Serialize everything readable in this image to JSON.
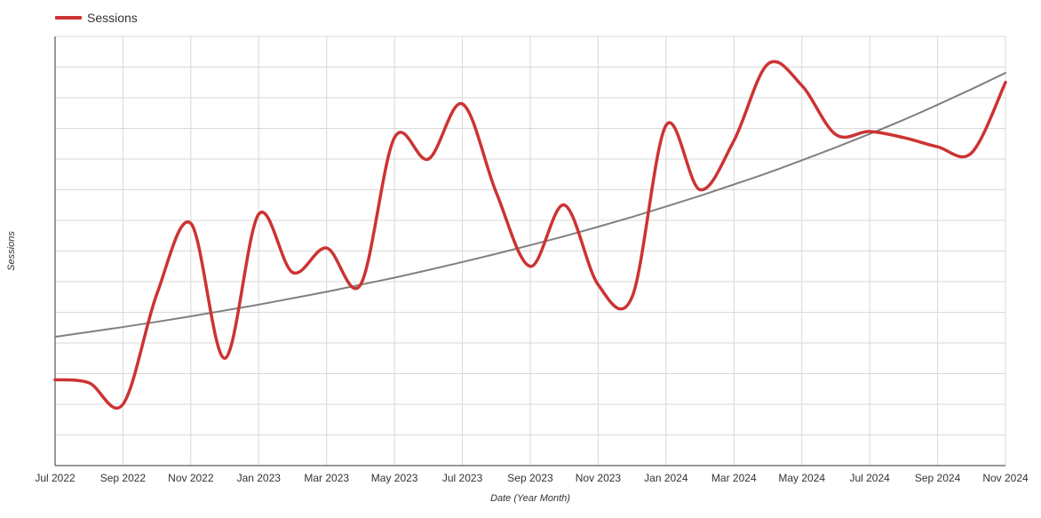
{
  "legend": {
    "label": "Sessions",
    "color": "#cc3333"
  },
  "chart_data": {
    "type": "line",
    "xlabel": "Date (Year Month)",
    "ylabel": "Sessions",
    "y_tick_labels_shown": false,
    "grid": true,
    "legend_position": "top-left",
    "x_ticks": [
      "Jul 2022",
      "Sep 2022",
      "Nov 2022",
      "Jan 2023",
      "Mar 2023",
      "May 2023",
      "Jul 2023",
      "Sep 2023",
      "Nov 2023",
      "Jan 2024",
      "Mar 2024",
      "May 2024",
      "Jul 2024",
      "Sep 2024",
      "Nov 2024"
    ],
    "x": [
      "Jul 2022",
      "Aug 2022",
      "Sep 2022",
      "Oct 2022",
      "Nov 2022",
      "Dec 2022",
      "Jan 2023",
      "Feb 2023",
      "Mar 2023",
      "Apr 2023",
      "May 2023",
      "Jun 2023",
      "Jul 2023",
      "Aug 2023",
      "Sep 2023",
      "Oct 2023",
      "Nov 2023",
      "Dec 2023",
      "Jan 2024",
      "Feb 2024",
      "Mar 2024",
      "Apr 2024",
      "May 2024",
      "Jun 2024",
      "Jul 2024",
      "Aug 2024",
      "Sep 2024",
      "Oct 2024",
      "Nov 2024"
    ],
    "ylim": [
      0,
      14
    ],
    "series": [
      {
        "name": "Sessions",
        "color": "#cc3333",
        "values": [
          2.8,
          2.7,
          2.0,
          5.6,
          7.9,
          3.5,
          8.2,
          6.3,
          7.1,
          5.9,
          10.7,
          10.0,
          11.8,
          8.9,
          6.5,
          8.5,
          5.9,
          5.5,
          11.1,
          9.0,
          10.6,
          13.1,
          12.4,
          10.8,
          10.9,
          10.7,
          10.4,
          10.2,
          12.5
        ]
      },
      {
        "name": "",
        "role": "trendline",
        "color": "#808080",
        "values": [
          4.2,
          4.36,
          4.52,
          4.69,
          4.87,
          5.06,
          5.25,
          5.46,
          5.67,
          5.9,
          6.13,
          6.38,
          6.64,
          6.91,
          7.19,
          7.48,
          7.79,
          8.11,
          8.45,
          8.8,
          9.17,
          9.55,
          9.96,
          10.38,
          10.82,
          11.28,
          11.77,
          12.28,
          12.81
        ]
      }
    ]
  }
}
